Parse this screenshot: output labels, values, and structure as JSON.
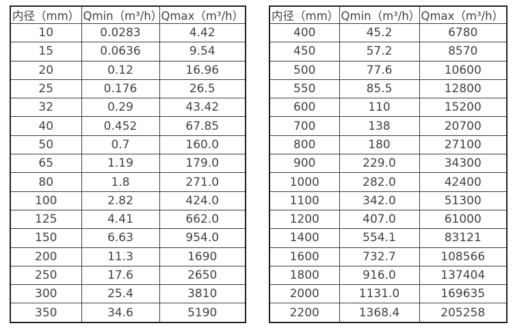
{
  "page": {
    "background_color": "#ffffff",
    "text_color": "#424242",
    "inner_border_color": "#383838",
    "outer_border_color": "#1f1f1f"
  },
  "tables": [
    {
      "id": "small-diameter-flow-table",
      "headers": [
        "内径（mm）",
        "Qmin（m³/h）",
        "Qmax（m³/h）"
      ],
      "rows": [
        [
          "10",
          "0.0283",
          "4.42"
        ],
        [
          "15",
          "0.0636",
          "9.54"
        ],
        [
          "20",
          "0.12",
          "16.96"
        ],
        [
          "25",
          "0.176",
          "26.5"
        ],
        [
          "32",
          "0.29",
          "43.42"
        ],
        [
          "40",
          "0.452",
          "67.85"
        ],
        [
          "50",
          "0.7",
          "160.0"
        ],
        [
          "65",
          "1.19",
          "179.0"
        ],
        [
          "80",
          "1.8",
          "271.0"
        ],
        [
          "100",
          "2.82",
          "424.0"
        ],
        [
          "125",
          "4.41",
          "662.0"
        ],
        [
          "150",
          "6.63",
          "954.0"
        ],
        [
          "200",
          "11.3",
          "1690"
        ],
        [
          "250",
          "17.6",
          "2650"
        ],
        [
          "300",
          "25.4",
          "3810"
        ],
        [
          "350",
          "34.6",
          "5190"
        ]
      ]
    },
    {
      "id": "large-diameter-flow-table",
      "headers": [
        "内径（mm）",
        "Qmin（m³/h）",
        "Qmax（m³/h）"
      ],
      "rows": [
        [
          "400",
          "45.2",
          "6780"
        ],
        [
          "450",
          "57.2",
          "8570"
        ],
        [
          "500",
          "77.6",
          "10600"
        ],
        [
          "550",
          "85.5",
          "12800"
        ],
        [
          "600",
          "110",
          "15200"
        ],
        [
          "700",
          "138",
          "20700"
        ],
        [
          "800",
          "180",
          "27100"
        ],
        [
          "900",
          "229.0",
          "34300"
        ],
        [
          "1000",
          "282.0",
          "42400"
        ],
        [
          "1100",
          "342.0",
          "51300"
        ],
        [
          "1200",
          "407.0",
          "61000"
        ],
        [
          "1400",
          "554.1",
          "83121"
        ],
        [
          "1600",
          "732.7",
          "108566"
        ],
        [
          "1800",
          "916.0",
          "137404"
        ],
        [
          "2000",
          "1131.0",
          "169635"
        ],
        [
          "2200",
          "1368.4",
          "205258"
        ]
      ]
    }
  ]
}
